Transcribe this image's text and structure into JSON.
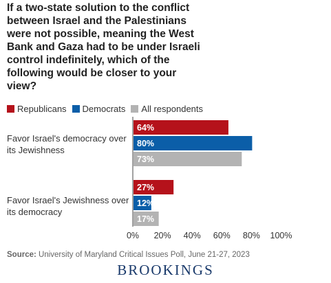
{
  "chart_data": {
    "type": "bar",
    "orientation": "horizontal",
    "title": "If a two-state solution to the conflict between Israel and the Palestinians were not possible, meaning the West Bank and Gaza had to be under Israeli control indefinitely, which of the following would be closer to your view?",
    "categories": [
      "Favor Israel's democracy over its Jewishness",
      "Favor Israel's Jewishness over its democracy"
    ],
    "series": [
      {
        "name": "Republicans",
        "color": "#b5121b",
        "values": [
          64,
          27
        ],
        "labels": [
          "64%",
          "27%"
        ]
      },
      {
        "name": "Democrats",
        "color": "#0b5ea8",
        "values": [
          80,
          12
        ],
        "labels": [
          "80%",
          "12%"
        ]
      },
      {
        "name": "All respondents",
        "color": "#b3b3b3",
        "values": [
          73,
          17
        ],
        "labels": [
          "73%",
          "17%"
        ]
      }
    ],
    "xlim": [
      0,
      100
    ],
    "xticks": [
      "0%",
      "20%",
      "40%",
      "60%",
      "80%",
      "100%"
    ],
    "legend": "top-left",
    "grid": false
  },
  "source_label": "Source:",
  "source_text": "University of Maryland Critical Issues Poll, June 21-27, 2023",
  "brand": "BROOKINGS"
}
